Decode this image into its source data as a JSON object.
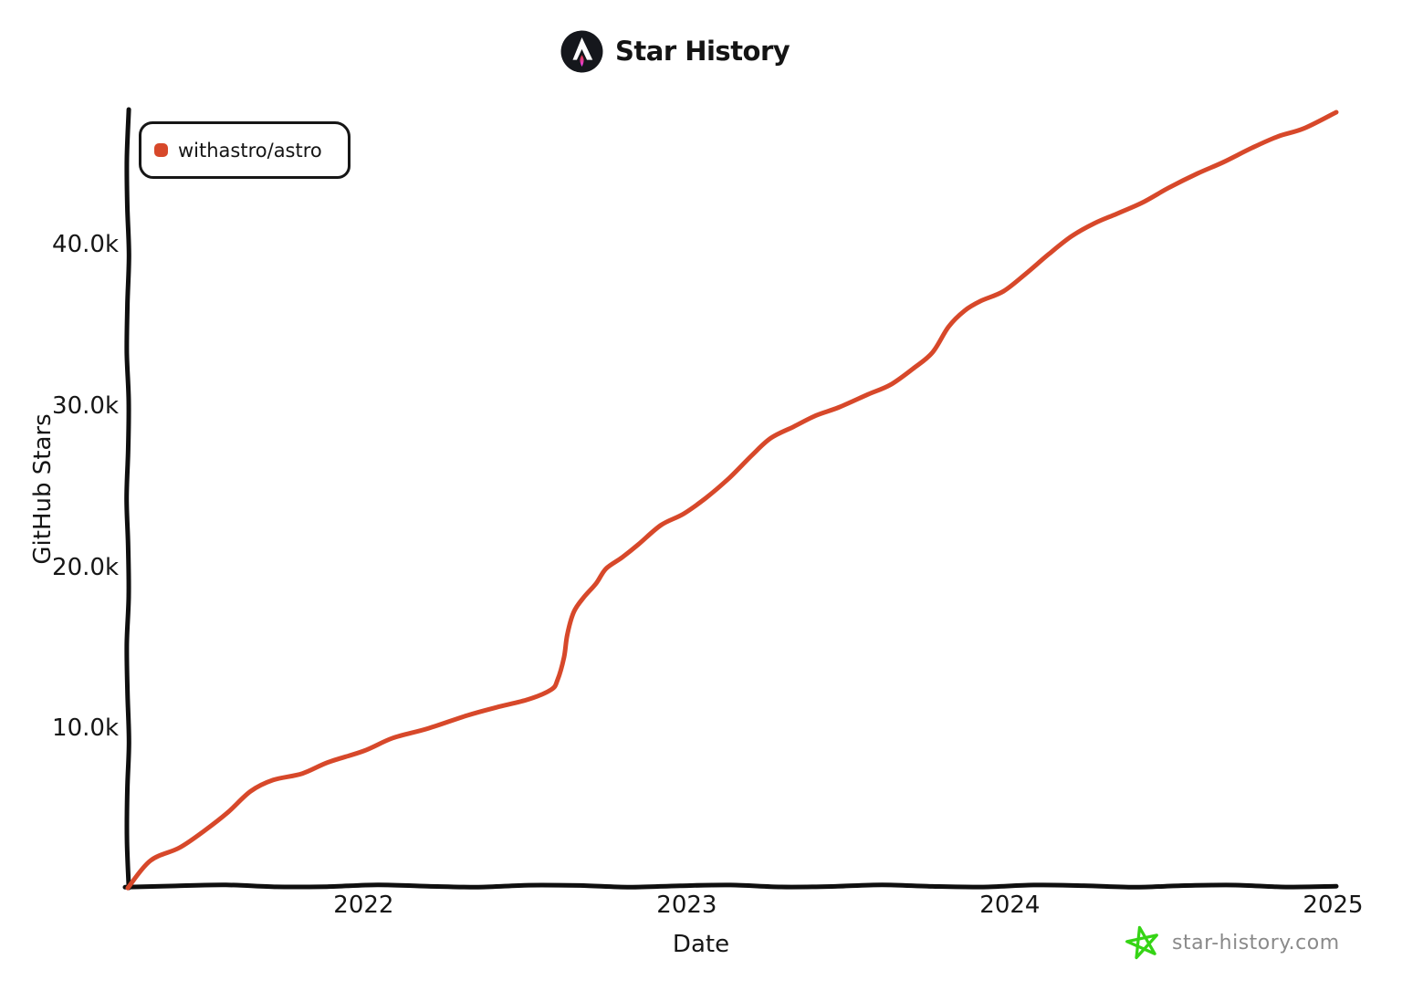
{
  "watermark": {
    "text": "star-history.com",
    "star_color": "#35d415",
    "text_color": "#8a8a8a"
  },
  "logo": {
    "circle_color": "#15171c",
    "glyph_color": "#ffffff",
    "flame_colors": [
      "#d83333",
      "#f041ff"
    ]
  },
  "axis_color": "#0f0f0f",
  "chart_data": {
    "type": "line",
    "title": "Star History",
    "xlabel": "Date",
    "ylabel": "GitHub Stars",
    "grid": false,
    "legend_position": "top-left",
    "x_unit": "decimal year",
    "xlim": [
      2021.27,
      2025.01
    ],
    "ylim": [
      0,
      48200
    ],
    "x_ticks": [
      {
        "label": "2022",
        "value": 2022
      },
      {
        "label": "2023",
        "value": 2023
      },
      {
        "label": "2024",
        "value": 2024
      },
      {
        "label": "2025",
        "value": 2025
      }
    ],
    "y_ticks": [
      {
        "label": "10.0k",
        "value": 10000
      },
      {
        "label": "20.0k",
        "value": 20000
      },
      {
        "label": "30.0k",
        "value": 30000
      },
      {
        "label": "40.0k",
        "value": 40000
      }
    ],
    "series": [
      {
        "name": "withastro/astro",
        "color": "#d7482a",
        "points": [
          [
            2021.27,
            100
          ],
          [
            2021.34,
            1800
          ],
          [
            2021.43,
            2600
          ],
          [
            2021.51,
            3700
          ],
          [
            2021.58,
            4800
          ],
          [
            2021.65,
            6100
          ],
          [
            2021.72,
            6800
          ],
          [
            2021.81,
            7200
          ],
          [
            2021.89,
            7900
          ],
          [
            2022.0,
            8600
          ],
          [
            2022.09,
            9400
          ],
          [
            2022.2,
            10000
          ],
          [
            2022.32,
            10800
          ],
          [
            2022.41,
            11300
          ],
          [
            2022.51,
            11800
          ],
          [
            2022.58,
            12400
          ],
          [
            2022.6,
            13000
          ],
          [
            2022.62,
            14400
          ],
          [
            2022.63,
            15800
          ],
          [
            2022.65,
            17200
          ],
          [
            2022.68,
            18100
          ],
          [
            2022.72,
            19000
          ],
          [
            2022.75,
            19900
          ],
          [
            2022.8,
            20600
          ],
          [
            2022.85,
            21400
          ],
          [
            2022.92,
            22600
          ],
          [
            2022.99,
            23300
          ],
          [
            2023.06,
            24300
          ],
          [
            2023.13,
            25500
          ],
          [
            2023.2,
            26900
          ],
          [
            2023.26,
            28000
          ],
          [
            2023.33,
            28700
          ],
          [
            2023.4,
            29400
          ],
          [
            2023.47,
            29900
          ],
          [
            2023.56,
            30700
          ],
          [
            2023.63,
            31300
          ],
          [
            2023.7,
            32300
          ],
          [
            2023.76,
            33300
          ],
          [
            2023.81,
            34900
          ],
          [
            2023.86,
            35900
          ],
          [
            2023.91,
            36500
          ],
          [
            2023.98,
            37100
          ],
          [
            2024.05,
            38200
          ],
          [
            2024.12,
            39400
          ],
          [
            2024.19,
            40500
          ],
          [
            2024.26,
            41300
          ],
          [
            2024.33,
            41900
          ],
          [
            2024.41,
            42600
          ],
          [
            2024.49,
            43500
          ],
          [
            2024.58,
            44400
          ],
          [
            2024.66,
            45100
          ],
          [
            2024.75,
            46000
          ],
          [
            2024.83,
            46700
          ],
          [
            2024.91,
            47200
          ],
          [
            2025.01,
            48200
          ]
        ]
      }
    ]
  }
}
